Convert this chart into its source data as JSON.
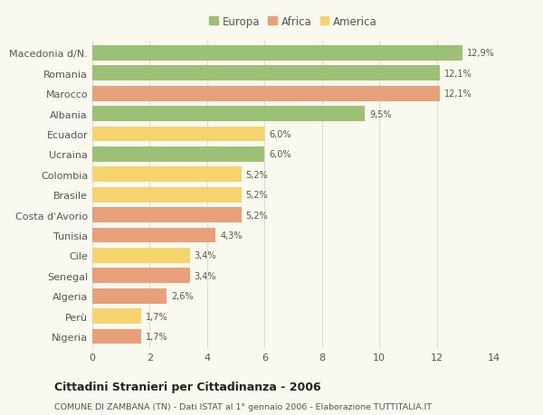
{
  "categories": [
    "Macedonia d/N.",
    "Romania",
    "Marocco",
    "Albania",
    "Ecuador",
    "Ucraina",
    "Colombia",
    "Brasile",
    "Costa d'Avorio",
    "Tunisia",
    "Cile",
    "Senegal",
    "Algeria",
    "Perù",
    "Nigeria"
  ],
  "values": [
    12.9,
    12.1,
    12.1,
    9.5,
    6.0,
    6.0,
    5.2,
    5.2,
    5.2,
    4.3,
    3.4,
    3.4,
    2.6,
    1.7,
    1.7
  ],
  "labels": [
    "12,9%",
    "12,1%",
    "12,1%",
    "9,5%",
    "6,0%",
    "6,0%",
    "5,2%",
    "5,2%",
    "5,2%",
    "4,3%",
    "3,4%",
    "3,4%",
    "2,6%",
    "1,7%",
    "1,7%"
  ],
  "colors": [
    "#9dc077",
    "#9dc077",
    "#e8a07a",
    "#9dc077",
    "#f5d470",
    "#9dc077",
    "#f5d470",
    "#f5d470",
    "#e8a07a",
    "#e8a07a",
    "#f5d470",
    "#e8a07a",
    "#e8a07a",
    "#f5d470",
    "#e8a07a"
  ],
  "legend_labels": [
    "Europa",
    "Africa",
    "America"
  ],
  "legend_colors": [
    "#9dc077",
    "#e8a07a",
    "#f5d470"
  ],
  "title": "Cittadini Stranieri per Cittadinanza - 2006",
  "subtitle": "COMUNE DI ZAMBANA (TN) - Dati ISTAT al 1° gennaio 2006 - Elaborazione TUTTITALIA.IT",
  "xlim": [
    0,
    14
  ],
  "xticks": [
    0,
    2,
    4,
    6,
    8,
    10,
    12,
    14
  ],
  "background_color": "#f9f9f0",
  "grid_color": "#ddddcc"
}
